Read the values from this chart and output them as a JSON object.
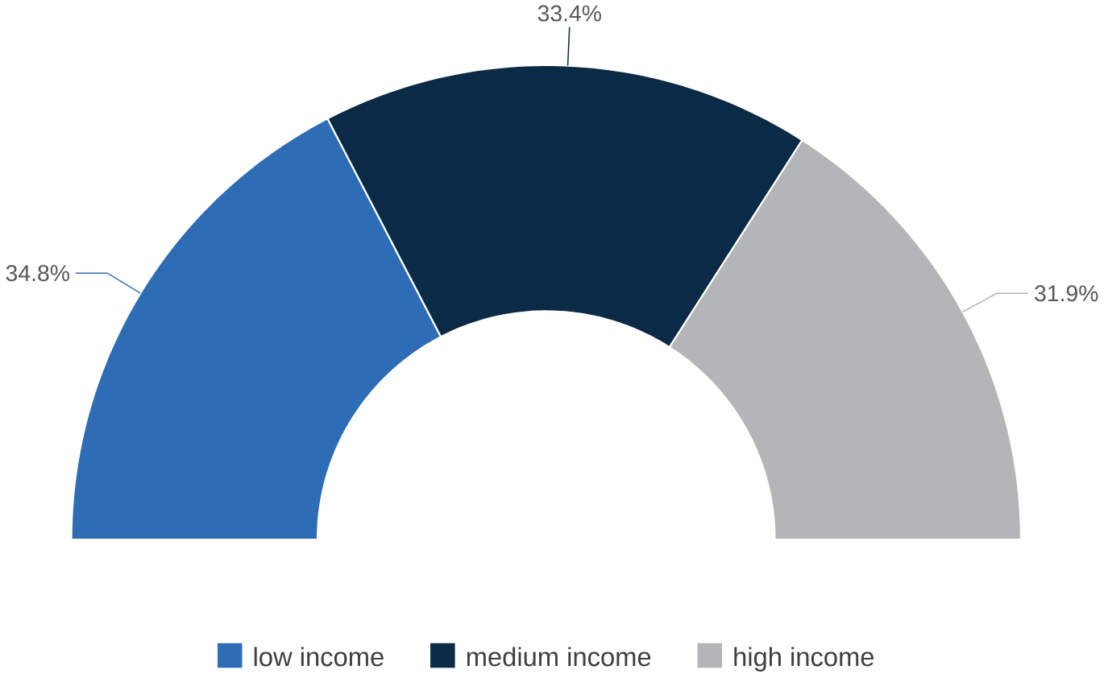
{
  "chart_data": {
    "type": "donut",
    "categories": [
      "low income",
      "medium income",
      "high income"
    ],
    "values": [
      34.8,
      33.4,
      31.9
    ],
    "value_labels": [
      "34.8%",
      "33.4%",
      "31.9%"
    ],
    "colors": [
      "#2e6db6",
      "#0b2a45",
      "#b4b5b7"
    ],
    "legend": "bottom"
  }
}
